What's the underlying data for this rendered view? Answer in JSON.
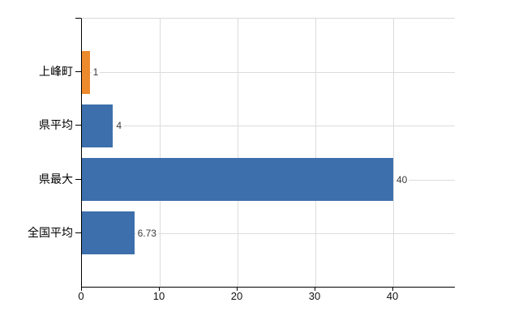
{
  "chart_data": {
    "type": "bar",
    "orientation": "horizontal",
    "title": "",
    "xlabel": "",
    "ylabel": "",
    "categories": [
      "上峰町",
      "県平均",
      "県最大",
      "全国平均"
    ],
    "values": [
      1,
      4,
      40,
      6.73
    ],
    "value_labels": [
      "1",
      "4",
      "40",
      "6.73"
    ],
    "bar_colors": [
      "#EC8A2D",
      "#3D6FAC",
      "#3D6FAC",
      "#3D6FAC"
    ],
    "x_ticks": [
      0,
      10,
      20,
      30,
      40
    ],
    "x_tick_labels": [
      "0",
      "10",
      "20",
      "30",
      "40"
    ],
    "xlim": [
      0,
      47.92
    ],
    "grid": true,
    "legend": false
  },
  "palette": {
    "grid_color": "#dcdcdc",
    "axis_color": "#000000",
    "plot_top_border_color": "#d9d9d9",
    "value_label_color": "#3a3a3a",
    "tick_label_color": "#111111",
    "background": "#ffffff"
  }
}
